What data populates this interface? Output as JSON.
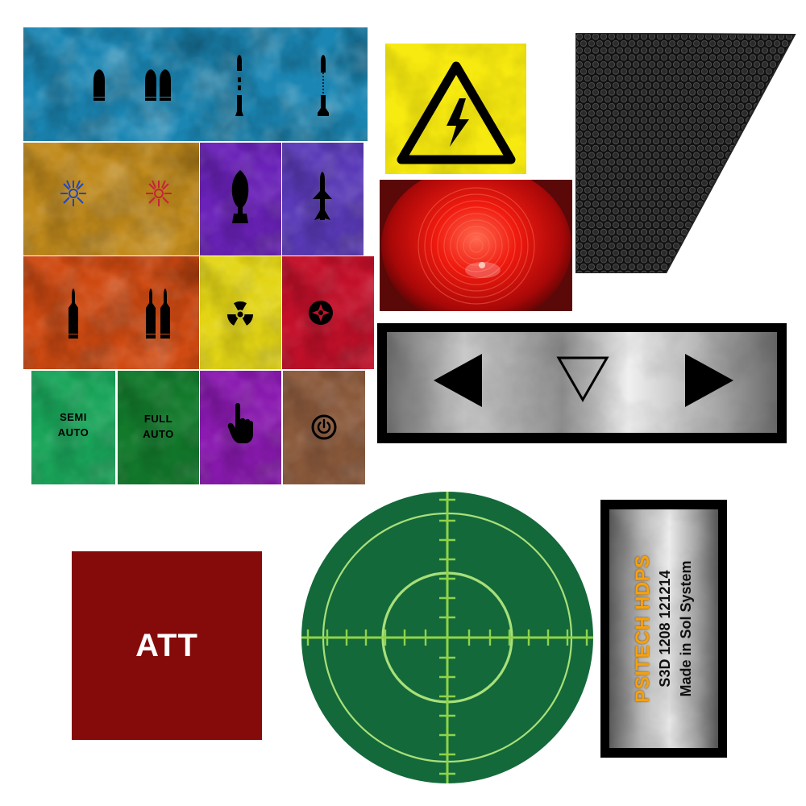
{
  "colors": {
    "blue_panel": "#1b86b3",
    "amber_panel": "#c08a1c",
    "violet_panel": "#6a22b8",
    "indigo_panel": "#5a3ab8",
    "orange_panel": "#cf4a12",
    "yellow_panel": "#e3d516",
    "red_panel": "#c3102a",
    "green_panel": "#1aa55a",
    "dark_green_panel": "#137a2c",
    "purple_panel": "#8a1ab0",
    "brown_panel": "#8b5a3c",
    "att_panel": "#850a0a",
    "radar_green": "#14693a",
    "radar_line": "#8fd34a",
    "warning_yellow": "#f7ea10",
    "plate_orange": "#f5a10e"
  },
  "icons": {
    "single_bullet": "single-bullet-icon",
    "double_bullet": "double-bullet-icon",
    "segmented_rocket": "segmented-rocket-icon",
    "tethered_missile": "tethered-missile-icon",
    "blue_burst": "blue-burst-icon",
    "red_burst": "red-burst-icon",
    "aerial_bomb": "aerial-bomb-icon",
    "cruise_missile": "cruise-missile-icon",
    "rifle_round": "rifle-round-icon",
    "double_rifle_round": "double-rifle-round-icon",
    "radiation": "radiation-icon",
    "target": "target-icon",
    "pointing_hand": "pointing-hand-icon",
    "power": "power-icon",
    "high_voltage": "high-voltage-icon",
    "left_arrow": "left-arrow-icon",
    "down_triangle": "down-triangle-icon",
    "right_arrow": "right-arrow-icon"
  },
  "buttons": {
    "semi_auto": [
      "SEMI",
      "AUTO"
    ],
    "full_auto": [
      "FULL",
      "AUTO"
    ],
    "att": "ATT"
  },
  "plate": {
    "brand": "PSITECH HDPS",
    "serial": "S3D 1208 121214",
    "origin": "Made in Sol System"
  }
}
